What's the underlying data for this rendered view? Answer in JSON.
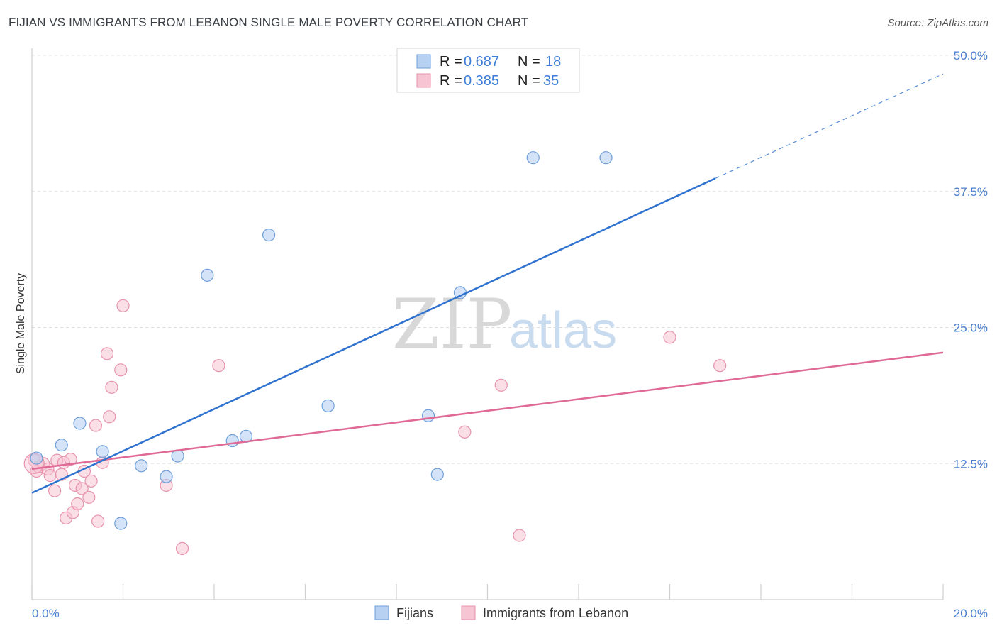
{
  "header": {
    "title": "FIJIAN VS IMMIGRANTS FROM LEBANON SINGLE MALE POVERTY CORRELATION CHART",
    "source": "Source: ZipAtlas.com"
  },
  "watermark": {
    "zip": "ZIP",
    "atlas": "atlas"
  },
  "legend": {
    "rows": [
      {
        "r_label": "R = ",
        "r_value": "0.687",
        "n_label": "N = ",
        "n_value": "18"
      },
      {
        "r_label": "R = ",
        "r_value": "0.385",
        "n_label": "N = ",
        "n_value": "35"
      }
    ]
  },
  "colors": {
    "fijians_fill": "#b7d1f2",
    "fijians_stroke": "#6f9fd8",
    "fijians_line": "#2f72cf",
    "lebanon_fill": "#f7c4d3",
    "lebanon_stroke": "#e793ad",
    "lebanon_line": "#e06a96"
  },
  "chart_data": {
    "type": "scatter",
    "title": "FIJIAN VS IMMIGRANTS FROM LEBANON SINGLE MALE POVERTY CORRELATION CHART",
    "xlabel": "",
    "ylabel": "Single Male Poverty",
    "xlim": [
      0,
      20
    ],
    "ylim": [
      0,
      50
    ],
    "x_tick_labels": [
      "0.0%",
      "20.0%"
    ],
    "y_ticks": [
      12.5,
      25.0,
      37.5,
      50.0
    ],
    "y_tick_labels": [
      "12.5%",
      "25.0%",
      "37.5%",
      "50.0%"
    ],
    "grid": true,
    "legend_position": "top-center",
    "series": [
      {
        "name": "Fijians",
        "points": [
          [
            0.1,
            13.0
          ],
          [
            0.65,
            14.2
          ],
          [
            1.05,
            16.2
          ],
          [
            1.55,
            13.6
          ],
          [
            1.95,
            7.0
          ],
          [
            2.4,
            12.3
          ],
          [
            2.95,
            11.3
          ],
          [
            3.2,
            13.2
          ],
          [
            3.85,
            29.8
          ],
          [
            4.4,
            14.6
          ],
          [
            4.7,
            15.0
          ],
          [
            5.2,
            33.5
          ],
          [
            6.5,
            17.8
          ],
          [
            8.7,
            16.9
          ],
          [
            8.9,
            11.5
          ],
          [
            9.4,
            28.2
          ],
          [
            11.0,
            40.6
          ],
          [
            12.6,
            40.6
          ]
        ],
        "trend": {
          "x": [
            0,
            15.0
          ],
          "y": [
            9.8,
            38.7
          ]
        },
        "trend_extension": {
          "x": [
            15.0,
            20.0
          ],
          "y": [
            38.7,
            48.3
          ]
        }
      },
      {
        "name": "Immigrants from Lebanon",
        "points": [
          [
            0.05,
            12.8
          ],
          [
            0.1,
            11.8
          ],
          [
            0.15,
            12.2
          ],
          [
            0.25,
            12.5
          ],
          [
            0.35,
            12.0
          ],
          [
            0.4,
            11.4
          ],
          [
            0.5,
            10.0
          ],
          [
            0.55,
            12.8
          ],
          [
            0.65,
            11.5
          ],
          [
            0.7,
            12.6
          ],
          [
            0.75,
            7.5
          ],
          [
            0.85,
            12.9
          ],
          [
            0.9,
            8.0
          ],
          [
            0.95,
            10.5
          ],
          [
            1.0,
            8.8
          ],
          [
            1.1,
            10.2
          ],
          [
            1.15,
            11.8
          ],
          [
            1.25,
            9.4
          ],
          [
            1.3,
            10.9
          ],
          [
            1.4,
            16.0
          ],
          [
            1.45,
            7.2
          ],
          [
            1.55,
            12.6
          ],
          [
            1.65,
            22.6
          ],
          [
            1.7,
            16.8
          ],
          [
            1.75,
            19.5
          ],
          [
            1.95,
            21.1
          ],
          [
            2.0,
            27.0
          ],
          [
            2.95,
            10.5
          ],
          [
            3.3,
            4.7
          ],
          [
            4.1,
            21.5
          ],
          [
            9.5,
            15.4
          ],
          [
            10.3,
            19.7
          ],
          [
            10.7,
            5.9
          ],
          [
            14.0,
            24.1
          ],
          [
            15.1,
            21.5
          ]
        ],
        "trend": {
          "x": [
            0,
            20.0
          ],
          "y": [
            12.0,
            22.7
          ]
        }
      }
    ]
  },
  "bottom_legend": {
    "items": [
      "Fijians",
      "Immigrants from Lebanon"
    ]
  }
}
